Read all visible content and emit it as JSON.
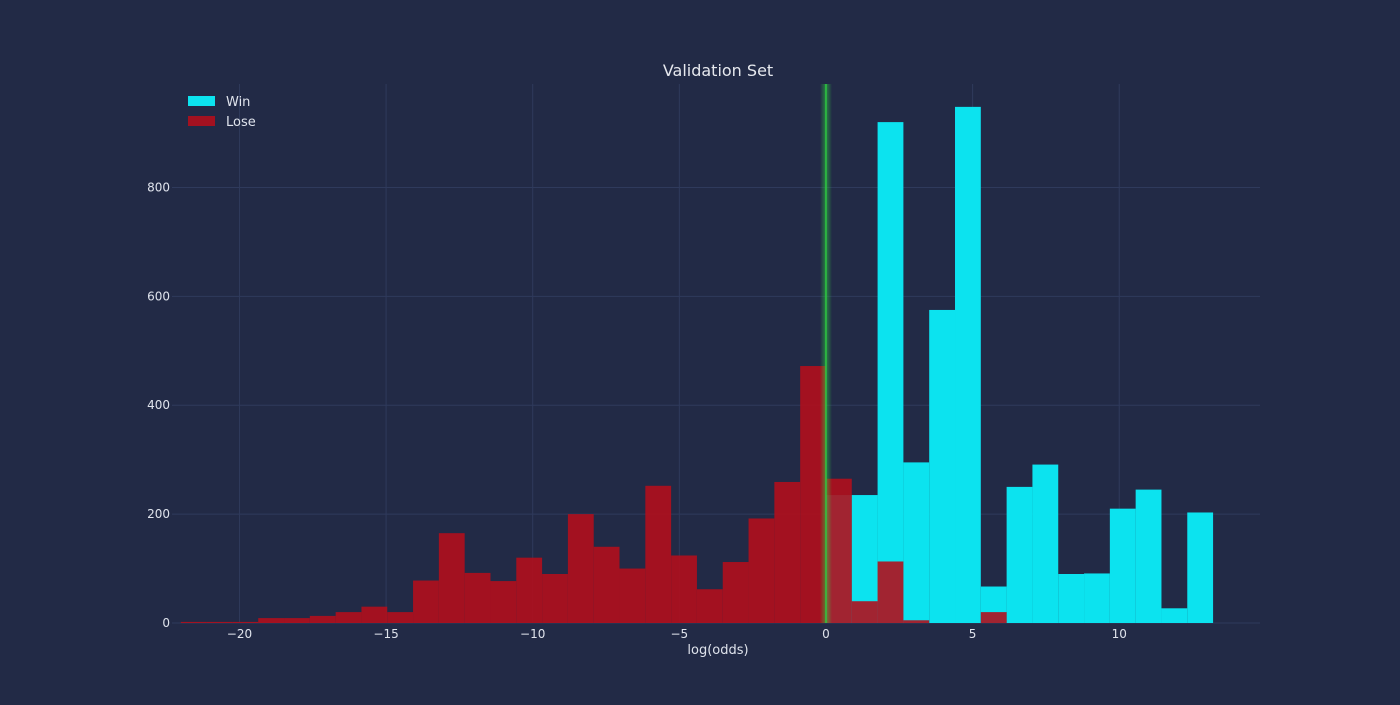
{
  "chart_data": {
    "type": "bar",
    "title": "Validation Set",
    "xlabel": "log(odds)",
    "ylabel": "",
    "xlim": [
      -22.3,
      14.8
    ],
    "ylim": [
      0,
      990
    ],
    "xticks": [
      -20,
      -15,
      -10,
      -5,
      0,
      5,
      10
    ],
    "xtick_labels": [
      "−20",
      "−15",
      "−10",
      "−5",
      "0",
      "5",
      "10"
    ],
    "yticks": [
      0,
      200,
      400,
      600,
      800
    ],
    "ytick_labels": [
      "0",
      "200",
      "400",
      "600",
      "800"
    ],
    "grid": true,
    "legend_position": "top-left",
    "threshold": {
      "x": 0,
      "color": "#2ecc40"
    },
    "colors": {
      "background": "#222a46",
      "grid": "#2f3a5c",
      "text": "#dfe3ec",
      "title": "#e6e8ee"
    },
    "series": [
      {
        "name": "Win",
        "color": "#0ce3ef",
        "opacity": 1.0,
        "bin_width": 0.88,
        "bin_edges_start": [
          -22,
          -21.12,
          -20.24,
          -19.36,
          -18.48,
          -17.6,
          -16.72,
          -15.84,
          -14.96,
          -14.08,
          -13.2,
          -12.32,
          -11.44,
          -10.56,
          -9.68,
          -8.8,
          -7.92,
          -7.04,
          -6.16,
          -5.28,
          -4.4,
          -3.52,
          -2.64,
          -1.76,
          -0.88,
          0,
          0.88,
          1.76,
          2.64,
          3.52,
          4.4,
          5.28,
          6.16,
          7.04,
          7.92,
          8.8,
          9.68,
          10.56,
          11.44,
          12.32
        ],
        "counts": [
          0,
          0,
          0,
          0,
          0,
          0,
          0,
          0,
          0,
          0,
          0,
          0,
          0,
          0,
          0,
          0,
          0,
          0,
          0,
          0,
          0,
          0,
          0,
          0,
          0,
          235,
          235,
          920,
          295,
          575,
          948,
          67,
          250,
          291,
          90,
          91,
          210,
          245,
          27,
          203
        ]
      },
      {
        "name": "Lose",
        "color": "#b10e1c",
        "opacity": 0.9,
        "bin_width": 0.88,
        "bin_edges_start": [
          -22,
          -21.12,
          -20.24,
          -19.36,
          -18.48,
          -17.6,
          -16.72,
          -15.84,
          -14.96,
          -14.08,
          -13.2,
          -12.32,
          -11.44,
          -10.56,
          -9.68,
          -8.8,
          -7.92,
          -7.04,
          -6.16,
          -5.28,
          -4.4,
          -3.52,
          -2.64,
          -1.76,
          -0.88,
          0,
          0.88,
          1.76,
          2.64,
          3.52,
          4.4,
          5.28,
          6.16,
          7.04,
          7.92,
          8.8,
          9.68,
          10.56,
          11.44,
          12.32
        ],
        "counts": [
          2,
          2,
          2,
          9,
          9,
          13,
          20,
          30,
          20,
          78,
          165,
          92,
          77,
          120,
          90,
          200,
          140,
          100,
          252,
          124,
          62,
          112,
          192,
          259,
          472,
          265,
          40,
          113,
          5,
          0,
          0,
          20,
          0,
          0,
          0,
          0,
          0,
          0,
          0,
          0
        ]
      }
    ]
  }
}
